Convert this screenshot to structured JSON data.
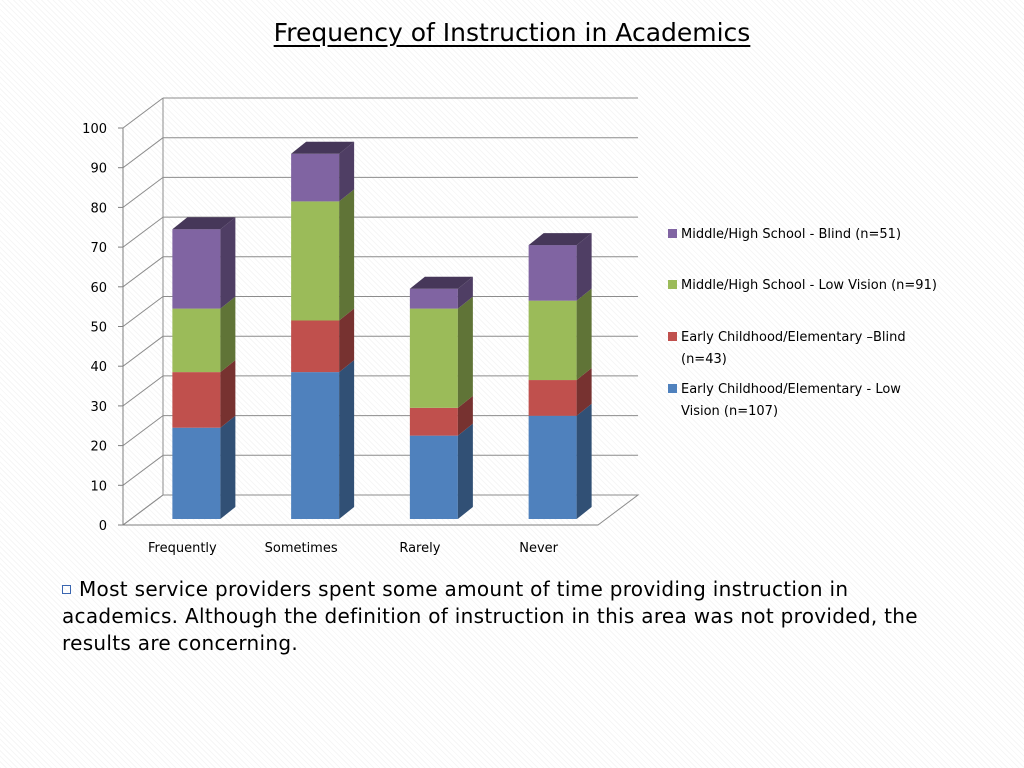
{
  "title": "Frequency of Instruction in Academics",
  "chart_data": {
    "type": "bar",
    "stacked": true,
    "three_d": true,
    "categories": [
      "Frequently",
      "Sometimes",
      "Rarely",
      "Never"
    ],
    "series": [
      {
        "name": "Early Childhood/Elementary - Low Vision (n=107)",
        "values": [
          23,
          37,
          21,
          26
        ],
        "color": "#4f81bd",
        "legend_lines": [
          "Early Childhood/Elementary - Low",
          "Vision (n=107)"
        ]
      },
      {
        "name": "Early Childhood/Elementary –Blind (n=43)",
        "values": [
          14,
          13,
          7,
          9
        ],
        "color": "#c0504d",
        "legend_lines": [
          "Early Childhood/Elementary –Blind",
          "(n=43)"
        ]
      },
      {
        "name": "Middle/High School - Low Vision (n=91)",
        "values": [
          16,
          30,
          25,
          20
        ],
        "color": "#9bbb59",
        "legend_lines": [
          "Middle/High School - Low Vision (n=91)"
        ]
      },
      {
        "name": "Middle/High School - Blind (n=51)",
        "values": [
          20,
          12,
          5,
          14
        ],
        "color": "#8064a2",
        "legend_lines": [
          "Middle/High School - Blind (n=51)"
        ]
      }
    ],
    "yticks": [
      0,
      10,
      20,
      30,
      40,
      50,
      60,
      70,
      80,
      90,
      100
    ],
    "ylim": [
      0,
      100
    ],
    "grid": true,
    "legend_position": "right"
  },
  "bullet_text": "Most service providers spent some amount of time providing instruction in academics. Although the definition of instruction in this area was not provided, the results are concerning."
}
